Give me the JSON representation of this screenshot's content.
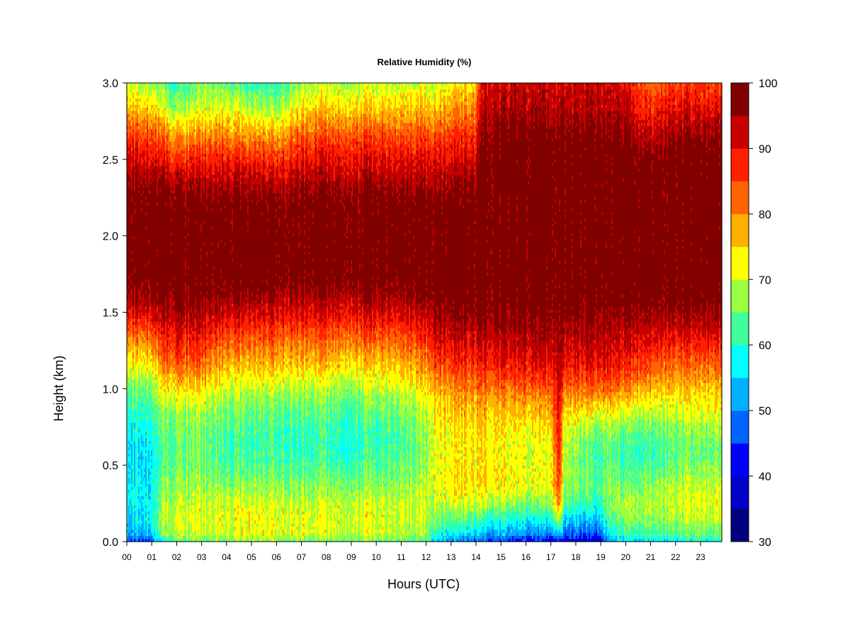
{
  "chart_data": {
    "type": "heatmap",
    "title": "Relative Humidity (%)",
    "xlabel": "Hours (UTC)",
    "ylabel": "Height (km)",
    "x_tick_labels": [
      "00",
      "01",
      "02",
      "03",
      "04",
      "05",
      "06",
      "07",
      "08",
      "09",
      "10",
      "11",
      "12",
      "13",
      "14",
      "15",
      "16",
      "17",
      "18",
      "19",
      "20",
      "21",
      "22",
      "23"
    ],
    "y_tick_labels": [
      "0.0",
      "0.5",
      "1.0",
      "1.5",
      "2.0",
      "2.5",
      "3.0"
    ],
    "xlim": [
      0,
      24
    ],
    "ylim": [
      0,
      3.0
    ],
    "colorbar": {
      "levels": [
        30,
        35,
        40,
        45,
        50,
        55,
        60,
        65,
        70,
        75,
        80,
        85,
        90,
        95,
        100
      ],
      "tick_labels": [
        "30",
        "40",
        "50",
        "60",
        "70",
        "80",
        "90",
        "100"
      ],
      "colors": [
        "#000080",
        "#0000C8",
        "#0000FF",
        "#0064FF",
        "#00B0FF",
        "#00FFFF",
        "#40FF9A",
        "#9AFF40",
        "#FFFF00",
        "#FFB000",
        "#FF6400",
        "#FF2000",
        "#C80000",
        "#800000"
      ]
    },
    "profile_heights_km": [
      0.0,
      0.05,
      0.15,
      0.25,
      0.35,
      0.45,
      0.55,
      0.65,
      0.75,
      0.85,
      0.95,
      1.05,
      1.15,
      1.25,
      1.35,
      1.45,
      1.55,
      1.65,
      1.75,
      1.85,
      1.95,
      2.05,
      2.15,
      2.25,
      2.35,
      2.45,
      2.55,
      2.65,
      2.75,
      2.85,
      2.95,
      3.0
    ],
    "profiles": [
      {
        "hour": 0,
        "rh": [
          45,
          52,
          56,
          57,
          57,
          56,
          56,
          57,
          58,
          60,
          63,
          67,
          72,
          77,
          82,
          88,
          93,
          96,
          98,
          99,
          99,
          99,
          99,
          99,
          97,
          94,
          91,
          87,
          82,
          77,
          72,
          70
        ]
      },
      {
        "hour": 1,
        "rh": [
          46,
          53,
          57,
          58,
          57,
          56,
          56,
          57,
          59,
          61,
          64,
          68,
          73,
          78,
          83,
          89,
          94,
          97,
          99,
          99,
          99,
          99,
          99,
          98,
          96,
          93,
          89,
          85,
          80,
          74,
          70,
          68
        ]
      },
      {
        "hour": 1.5,
        "rh": [
          58,
          66,
          68,
          68,
          66,
          64,
          63,
          63,
          64,
          66,
          70,
          75,
          80,
          85,
          88,
          92,
          95,
          98,
          99,
          99,
          99,
          99,
          99,
          98,
          95,
          91,
          87,
          82,
          76,
          70,
          66,
          64
        ]
      },
      {
        "hour": 2,
        "rh": [
          63,
          68,
          70,
          69,
          67,
          65,
          64,
          64,
          65,
          67,
          72,
          77,
          82,
          86,
          89,
          93,
          96,
          98,
          99,
          99,
          99,
          99,
          99,
          97,
          94,
          89,
          84,
          78,
          72,
          66,
          62,
          60
        ]
      },
      {
        "hour": 3,
        "rh": [
          64,
          69,
          71,
          70,
          68,
          66,
          65,
          65,
          66,
          68,
          72,
          77,
          82,
          86,
          89,
          93,
          96,
          98,
          99,
          99,
          99,
          99,
          99,
          97,
          94,
          90,
          86,
          80,
          75,
          70,
          67,
          66
        ]
      },
      {
        "hour": 4,
        "rh": [
          65,
          70,
          71,
          70,
          67,
          64,
          62,
          62,
          63,
          65,
          68,
          72,
          77,
          81,
          85,
          90,
          94,
          97,
          99,
          99,
          99,
          99,
          99,
          97,
          94,
          90,
          86,
          81,
          76,
          71,
          67,
          64
        ]
      },
      {
        "hour": 5,
        "rh": [
          66,
          71,
          72,
          70,
          67,
          64,
          62,
          61,
          62,
          64,
          67,
          71,
          76,
          80,
          84,
          89,
          93,
          97,
          99,
          99,
          99,
          99,
          99,
          97,
          94,
          90,
          85,
          79,
          73,
          67,
          63,
          60
        ]
      },
      {
        "hour": 6,
        "rh": [
          67,
          72,
          72,
          71,
          68,
          65,
          63,
          62,
          63,
          65,
          68,
          72,
          77,
          81,
          85,
          90,
          94,
          97,
          99,
          99,
          99,
          99,
          99,
          97,
          94,
          90,
          85,
          79,
          73,
          67,
          63,
          60
        ]
      },
      {
        "hour": 7,
        "rh": [
          66,
          71,
          72,
          70,
          67,
          64,
          62,
          61,
          62,
          64,
          67,
          71,
          76,
          80,
          84,
          89,
          93,
          97,
          99,
          99,
          99,
          99,
          99,
          98,
          95,
          92,
          88,
          84,
          79,
          74,
          70,
          68
        ]
      },
      {
        "hour": 8,
        "rh": [
          65,
          70,
          71,
          70,
          67,
          64,
          62,
          61,
          62,
          64,
          67,
          71,
          76,
          80,
          84,
          89,
          93,
          97,
          99,
          99,
          99,
          99,
          99,
          98,
          95,
          92,
          89,
          85,
          80,
          75,
          71,
          69
        ]
      },
      {
        "hour": 9,
        "rh": [
          66,
          70,
          71,
          70,
          67,
          64,
          61,
          60,
          61,
          63,
          66,
          70,
          75,
          79,
          84,
          89,
          93,
          97,
          99,
          99,
          99,
          99,
          99,
          98,
          95,
          92,
          89,
          85,
          80,
          75,
          71,
          69
        ]
      },
      {
        "hour": 10,
        "rh": [
          65,
          70,
          71,
          70,
          67,
          64,
          62,
          61,
          62,
          64,
          67,
          71,
          75,
          79,
          84,
          89,
          93,
          97,
          99,
          99,
          99,
          99,
          99,
          98,
          95,
          92,
          89,
          85,
          80,
          75,
          72,
          70
        ]
      },
      {
        "hour": 11,
        "rh": [
          64,
          69,
          70,
          70,
          68,
          66,
          64,
          63,
          64,
          66,
          69,
          73,
          77,
          81,
          85,
          90,
          94,
          97,
          99,
          99,
          99,
          99,
          99,
          98,
          95,
          92,
          89,
          85,
          80,
          76,
          72,
          70
        ]
      },
      {
        "hour": 12,
        "rh": [
          63,
          68,
          70,
          70,
          69,
          67,
          66,
          66,
          67,
          69,
          72,
          75,
          79,
          83,
          87,
          91,
          95,
          98,
          99,
          99,
          99,
          99,
          99,
          98,
          95,
          92,
          89,
          85,
          80,
          76,
          72,
          70
        ]
      },
      {
        "hour": 12.4,
        "rh": [
          56,
          62,
          66,
          69,
          71,
          72,
          72,
          72,
          73,
          74,
          76,
          80,
          85,
          89,
          92,
          95,
          97,
          99,
          99,
          99,
          99,
          99,
          99,
          98,
          95,
          92,
          89,
          85,
          80,
          76,
          72,
          70
        ]
      },
      {
        "hour": 13,
        "rh": [
          50,
          57,
          64,
          70,
          73,
          73,
          72,
          72,
          73,
          75,
          77,
          81,
          85,
          89,
          92,
          95,
          97,
          99,
          99,
          99,
          99,
          99,
          99,
          98,
          95,
          92,
          89,
          86,
          82,
          78,
          74,
          72
        ]
      },
      {
        "hour": 14,
        "rh": [
          48,
          55,
          63,
          70,
          74,
          75,
          74,
          74,
          75,
          77,
          79,
          83,
          87,
          90,
          93,
          96,
          98,
          99,
          99,
          99,
          99,
          99,
          99,
          98,
          96,
          93,
          90,
          87,
          84,
          80,
          76,
          74
        ]
      },
      {
        "hour": 14.4,
        "rh": [
          46,
          53,
          61,
          69,
          74,
          75,
          74,
          74,
          75,
          77,
          80,
          84,
          88,
          91,
          94,
          97,
          98,
          99,
          99,
          99,
          99,
          99,
          99,
          99,
          99,
          99,
          98,
          97,
          96,
          94,
          93,
          92
        ]
      },
      {
        "hour": 15,
        "rh": [
          45,
          52,
          60,
          68,
          73,
          74,
          73,
          73,
          74,
          76,
          79,
          84,
          88,
          91,
          94,
          97,
          98,
          99,
          99,
          99,
          99,
          99,
          99,
          99,
          99,
          99,
          99,
          98,
          96,
          94,
          93,
          92
        ]
      },
      {
        "hour": 16,
        "rh": [
          42,
          50,
          58,
          66,
          71,
          72,
          71,
          71,
          73,
          76,
          80,
          85,
          89,
          92,
          94,
          96,
          98,
          99,
          99,
          99,
          99,
          99,
          99,
          99,
          99,
          99,
          99,
          98,
          96,
          94,
          93,
          92
        ]
      },
      {
        "hour": 17,
        "rh": [
          40,
          49,
          57,
          65,
          70,
          71,
          70,
          71,
          73,
          76,
          80,
          85,
          89,
          92,
          94,
          96,
          98,
          99,
          99,
          99,
          99,
          99,
          99,
          99,
          99,
          99,
          99,
          98,
          96,
          94,
          93,
          92
        ]
      },
      {
        "hour": 17.45,
        "rh": [
          42,
          56,
          72,
          82,
          86,
          88,
          89,
          90,
          91,
          92,
          93,
          94,
          95,
          96,
          97,
          98,
          98,
          99,
          99,
          99,
          99,
          99,
          99,
          99,
          99,
          99,
          99,
          98,
          96,
          94,
          93,
          92
        ]
      },
      {
        "hour": 17.6,
        "rh": [
          40,
          48,
          57,
          65,
          68,
          70,
          70,
          71,
          73,
          76,
          80,
          85,
          89,
          92,
          94,
          96,
          98,
          99,
          99,
          99,
          99,
          99,
          99,
          99,
          99,
          99,
          99,
          98,
          96,
          94,
          93,
          92
        ]
      },
      {
        "hour": 18,
        "rh": [
          39,
          47,
          55,
          62,
          66,
          67,
          67,
          68,
          71,
          75,
          80,
          85,
          89,
          92,
          94,
          96,
          98,
          99,
          99,
          99,
          99,
          99,
          99,
          99,
          99,
          99,
          99,
          98,
          96,
          94,
          93,
          92
        ]
      },
      {
        "hour": 19,
        "rh": [
          37,
          46,
          54,
          60,
          63,
          62,
          61,
          62,
          66,
          72,
          79,
          85,
          89,
          92,
          94,
          96,
          98,
          99,
          99,
          99,
          99,
          99,
          99,
          99,
          99,
          99,
          99,
          98,
          96,
          94,
          93,
          92
        ]
      },
      {
        "hour": 19.5,
        "rh": [
          50,
          58,
          64,
          67,
          67,
          66,
          65,
          66,
          69,
          74,
          80,
          86,
          90,
          92,
          94,
          96,
          98,
          99,
          99,
          99,
          99,
          99,
          99,
          99,
          99,
          99,
          99,
          98,
          96,
          94,
          93,
          92
        ]
      },
      {
        "hour": 20,
        "rh": [
          55,
          61,
          66,
          68,
          66,
          63,
          61,
          62,
          66,
          71,
          77,
          83,
          88,
          91,
          93,
          95,
          97,
          99,
          99,
          99,
          99,
          99,
          99,
          99,
          99,
          99,
          99,
          98,
          96,
          94,
          92,
          90
        ]
      },
      {
        "hour": 21,
        "rh": [
          56,
          62,
          67,
          69,
          67,
          64,
          61,
          62,
          65,
          70,
          75,
          80,
          85,
          89,
          92,
          95,
          97,
          99,
          99,
          99,
          99,
          99,
          99,
          99,
          99,
          98,
          96,
          93,
          90,
          87,
          84,
          82
        ]
      },
      {
        "hour": 22,
        "rh": [
          57,
          63,
          68,
          70,
          69,
          66,
          64,
          64,
          67,
          70,
          74,
          78,
          82,
          86,
          90,
          94,
          97,
          99,
          99,
          99,
          99,
          99,
          99,
          99,
          99,
          99,
          98,
          96,
          93,
          90,
          87,
          85
        ]
      },
      {
        "hour": 23,
        "rh": [
          58,
          64,
          69,
          71,
          70,
          67,
          65,
          65,
          68,
          71,
          74,
          78,
          82,
          86,
          90,
          94,
          97,
          99,
          99,
          99,
          99,
          99,
          99,
          99,
          99,
          99,
          98,
          96,
          93,
          90,
          87,
          85
        ]
      },
      {
        "hour": 24,
        "rh": [
          58,
          64,
          69,
          71,
          70,
          67,
          65,
          65,
          68,
          71,
          74,
          78,
          82,
          86,
          90,
          94,
          97,
          99,
          99,
          99,
          99,
          99,
          99,
          99,
          99,
          99,
          98,
          96,
          93,
          90,
          87,
          85
        ]
      }
    ]
  }
}
